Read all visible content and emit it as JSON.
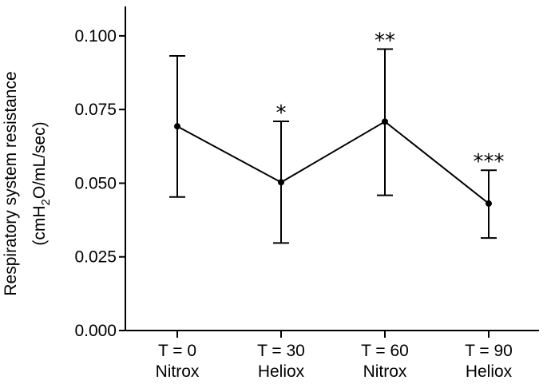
{
  "chart_data": {
    "type": "line",
    "ylabel": {
      "line1": "Respiratory system resistance",
      "line2_prefix": "(cmH",
      "line2_sub": "2",
      "line2_suffix": "O/mL/sec)"
    },
    "xlabel": "",
    "title": "",
    "categories": [
      [
        "T = 0",
        "Nitrox"
      ],
      [
        "T = 30",
        "Heliox"
      ],
      [
        "T = 60",
        "Nitrox"
      ],
      [
        "T = 90",
        "Heliox"
      ]
    ],
    "series": [
      {
        "values": [
          0.0693,
          0.0503,
          0.0709,
          0.0431
        ],
        "error_low": [
          0.0453,
          0.0297,
          0.0459,
          0.0314
        ],
        "error_high": [
          0.0932,
          0.071,
          0.0955,
          0.0544
        ]
      }
    ],
    "annotations": [
      "",
      "*",
      "**",
      "***"
    ],
    "ylim": [
      0,
      0.11
    ],
    "yticks": [
      0,
      0.025,
      0.05,
      0.075,
      0.1
    ],
    "ytick_labels": [
      "0.000",
      "0.025",
      "0.050",
      "0.075",
      "0.100"
    ],
    "grid": false,
    "colors": {
      "line": "#000000",
      "background": "#ffffff"
    }
  }
}
